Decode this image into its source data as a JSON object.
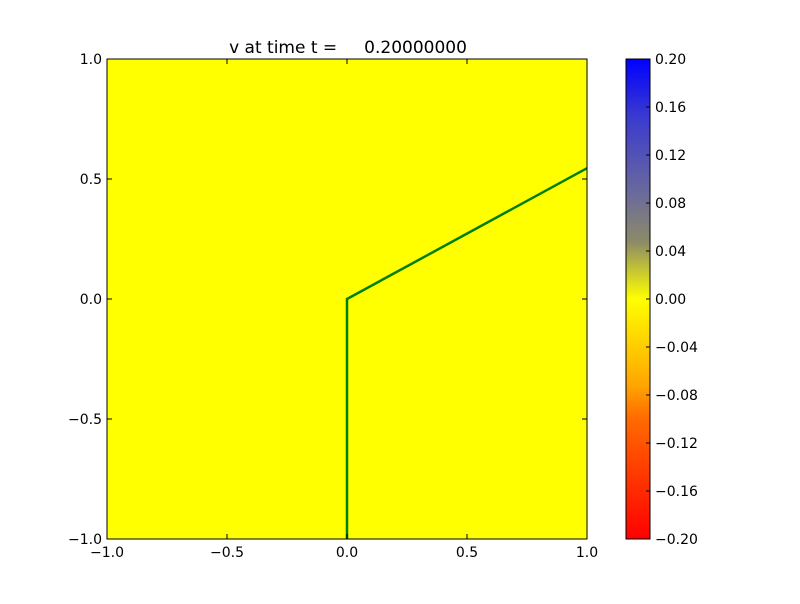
{
  "chart_data": {
    "type": "heatmap",
    "title": "v at time t =     0.20000000",
    "field_value": 0.0,
    "field_color": "#ffff00",
    "xlim": [
      -1.0,
      1.0
    ],
    "ylim": [
      -1.0,
      1.0
    ],
    "xticks": [
      "−1.0",
      "−0.5",
      "0.0",
      "0.5",
      "1.0"
    ],
    "xtick_values": [
      -1.0,
      -0.5,
      0.0,
      0.5,
      1.0
    ],
    "yticks": [
      "−1.0",
      "−0.5",
      "0.0",
      "0.5",
      "1.0"
    ],
    "ytick_values": [
      -1.0,
      -0.5,
      0.0,
      0.5,
      1.0
    ],
    "line": {
      "color": "#008000",
      "x": [
        0.0,
        0.0,
        1.0
      ],
      "y": [
        -1.0,
        0.0,
        0.545
      ]
    },
    "colorbar": {
      "range": [
        -0.2,
        0.2
      ],
      "tick_values": [
        -0.2,
        -0.16,
        -0.12,
        -0.08,
        -0.04,
        0.0,
        0.04,
        0.08,
        0.12,
        0.16,
        0.2
      ],
      "tick_labels": [
        "−0.20",
        "−0.16",
        "−0.12",
        "−0.08",
        "−0.04",
        "0.00",
        "0.04",
        "0.08",
        "0.12",
        "0.16",
        "0.20"
      ],
      "colors": [
        "#ff0000",
        "#ff6a00",
        "#ffa500",
        "#ffff00",
        "#8c8a68",
        "#6a6a9c",
        "#3a3ad0",
        "#0000ff"
      ]
    }
  }
}
